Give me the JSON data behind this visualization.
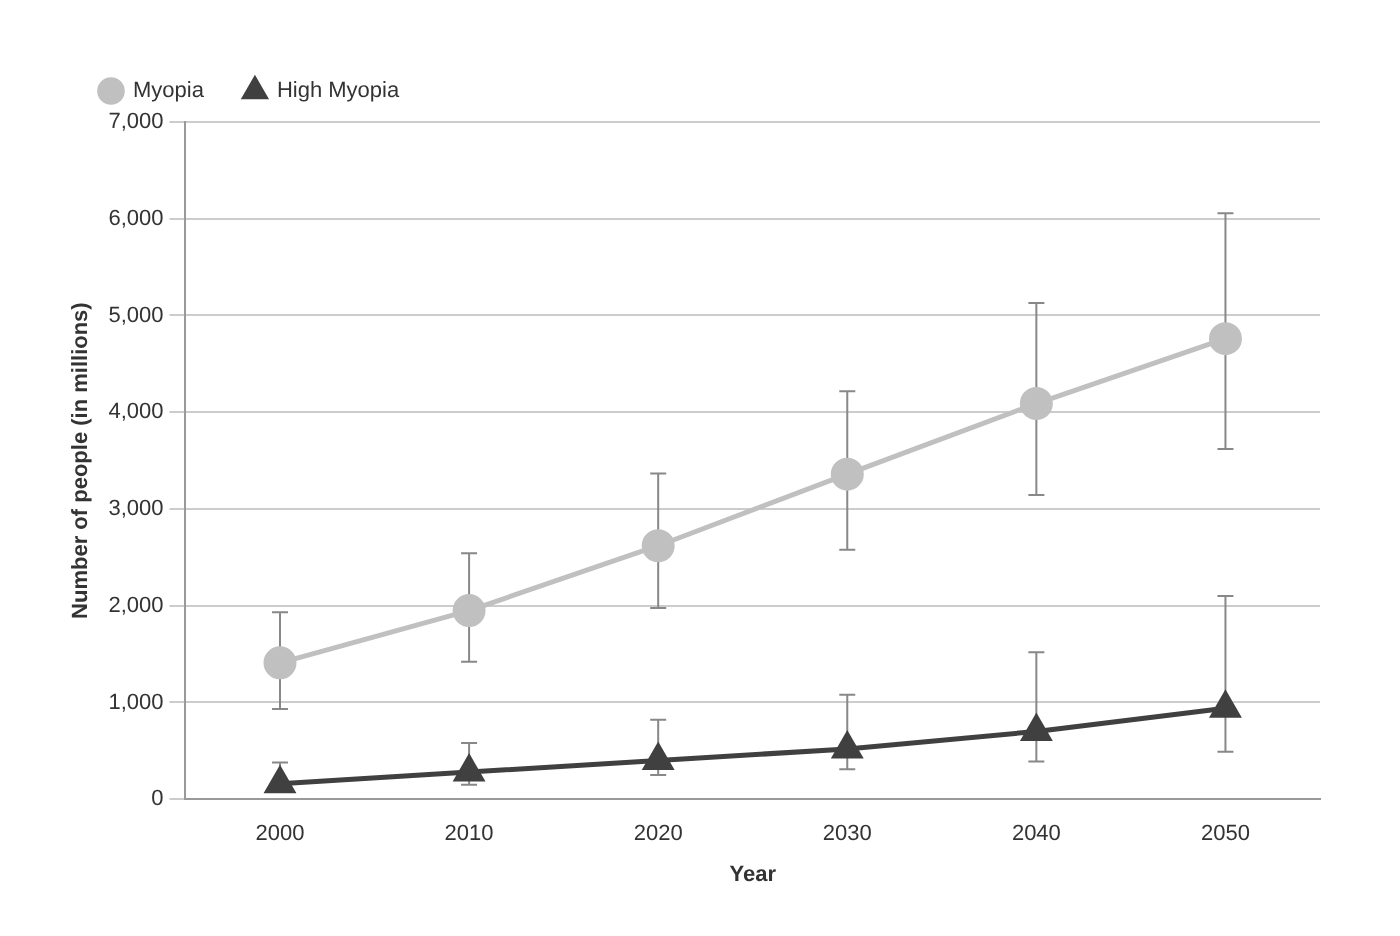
{
  "chart_data": {
    "type": "line",
    "xlabel": "Year",
    "ylabel": "Number of people (in millions)",
    "categories": [
      "2000",
      "2010",
      "2020",
      "2030",
      "2040",
      "2050"
    ],
    "series": [
      {
        "name": "Myopia",
        "color": "#c0c0c0",
        "marker": "circle",
        "values": [
          1410,
          1950,
          2620,
          3360,
          4090,
          4760
        ],
        "errors": [
          [
            932,
            1932
          ],
          [
            1422,
            2543
          ],
          [
            1976,
            3366
          ],
          [
            2578,
            4217
          ],
          [
            3145,
            5128
          ],
          [
            3620,
            6056
          ]
        ]
      },
      {
        "name": "High Myopia",
        "color": "#404040",
        "marker": "triangle",
        "values": [
          160,
          280,
          400,
          520,
          700,
          940
        ],
        "errors": [
          [
            90,
            380
          ],
          [
            150,
            580
          ],
          [
            250,
            820
          ],
          [
            310,
            1080
          ],
          [
            390,
            1520
          ],
          [
            490,
            2100
          ]
        ]
      }
    ],
    "ylim": [
      0,
      7000
    ],
    "yticks": [
      0,
      {
        "value": 1000,
        "label": "1,000"
      },
      {
        "value": 2000,
        "label": "2,000"
      },
      {
        "value": 3000,
        "label": "3,000"
      },
      {
        "value": 4000,
        "label": "4,000"
      },
      {
        "value": 5000,
        "label": "5,000"
      },
      {
        "value": 6000,
        "label": "6,000"
      },
      {
        "value": 7000,
        "label": "7,000"
      }
    ],
    "grid": "y",
    "legend": "top left"
  }
}
